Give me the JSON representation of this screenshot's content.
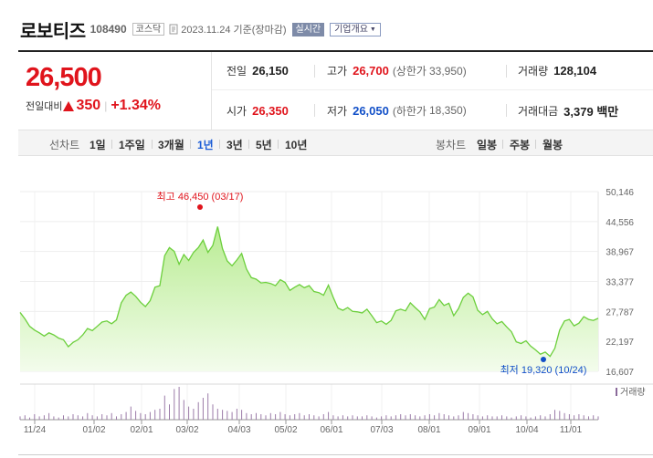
{
  "header": {
    "name": "로보티즈",
    "code": "108490",
    "market": "코스닥",
    "as_of": "2023.11.24 기준(장마감)",
    "realtime_label": "실시간",
    "overview_label": "기업개요"
  },
  "price": {
    "current": "26,500",
    "change_label": "전일대비",
    "change_value": "350",
    "change_percent": "+1.34%",
    "direction": "up"
  },
  "stats": {
    "prev_close": {
      "label": "전일",
      "value": "26,150"
    },
    "high": {
      "label": "고가",
      "value": "26,700",
      "limit_label": "(상한가",
      "limit_value": "33,950)"
    },
    "volume": {
      "label": "거래량",
      "value": "128,104"
    },
    "open": {
      "label": "시가",
      "value": "26,350"
    },
    "low": {
      "label": "저가",
      "value": "26,050",
      "limit_label": "(하한가",
      "limit_value": "18,350)"
    },
    "trade_value": {
      "label": "거래대금",
      "value": "3,379 백만"
    }
  },
  "period_bar": {
    "line_label": "선차트",
    "line_options": [
      "1일",
      "1주일",
      "3개월",
      "1년",
      "3년",
      "5년",
      "10년"
    ],
    "active_line": "1년",
    "candle_label": "봉차트",
    "candle_options": [
      "일봉",
      "주봉",
      "월봉"
    ]
  },
  "colors": {
    "up": "#e0141c",
    "down": "#1250c8",
    "line": "#6ccf3c",
    "active": "#1a5bd6"
  },
  "chart_data": {
    "type": "area",
    "y_ticks": [
      "50,146",
      "44,556",
      "38,967",
      "33,377",
      "27,787",
      "22,197",
      "16,607"
    ],
    "ylim": [
      16607,
      50146
    ],
    "x_ticks": [
      "11/24",
      "01/02",
      "02/01",
      "03/02",
      "04/03",
      "05/02",
      "06/01",
      "07/03",
      "08/01",
      "09/01",
      "10/04",
      "11/01"
    ],
    "max_annotation": "최고 46,450 (03/17)",
    "min_annotation": "최저 19,320 (10/24)",
    "volume_legend": "거래량",
    "series": [
      {
        "values": [
          27600,
          26400,
          25000,
          24300,
          23800,
          23200,
          23800,
          23400,
          22800,
          22500,
          21200,
          22000,
          22500,
          23400,
          24600,
          24200,
          25000,
          25800,
          26000,
          25500,
          26200,
          29400,
          30800,
          31400,
          30600,
          29500,
          28700,
          29800,
          32300,
          32600,
          38200,
          39700,
          39000,
          36600,
          38400,
          37300,
          38800,
          39700,
          41100,
          38800,
          40100,
          43600,
          39500,
          37200,
          36300,
          37400,
          38600,
          35700,
          34100,
          33800,
          33100,
          33200,
          33000,
          32600,
          33700,
          33200,
          31700,
          32300,
          32800,
          32200,
          32600,
          31500,
          31300,
          30800,
          32700,
          30400,
          28400,
          28000,
          28500,
          27800,
          27700,
          27500,
          28200,
          27000,
          25700,
          26000,
          25400,
          26100,
          27900,
          28200,
          27900,
          29400,
          28500,
          27700,
          26300,
          28300,
          28600,
          30000,
          28900,
          29300,
          27000,
          28300,
          30400,
          31200,
          30500,
          28000,
          27200,
          27800,
          26400,
          25500,
          25900,
          24900,
          24000,
          22100,
          21800,
          22300,
          21300,
          20600,
          19800,
          20200,
          19400,
          20900,
          24300,
          26000,
          26300,
          25100,
          25600,
          26800,
          26300,
          26100,
          26500
        ]
      }
    ],
    "volume": [
      3,
      4,
      2,
      5,
      3,
      4,
      6,
      3,
      2,
      4,
      3,
      5,
      4,
      3,
      6,
      4,
      3,
      5,
      4,
      6,
      3,
      5,
      7,
      12,
      8,
      6,
      5,
      7,
      9,
      10,
      22,
      14,
      28,
      30,
      18,
      12,
      10,
      16,
      20,
      24,
      14,
      10,
      9,
      8,
      7,
      10,
      9,
      6,
      5,
      6,
      5,
      4,
      6,
      5,
      7,
      5,
      4,
      5,
      6,
      4,
      5,
      4,
      3,
      5,
      7,
      4,
      3,
      4,
      3,
      4,
      3,
      3,
      4,
      3,
      2,
      3,
      4,
      3,
      4,
      5,
      4,
      5,
      4,
      3,
      4,
      5,
      4,
      6,
      5,
      4,
      3,
      4,
      7,
      6,
      5,
      4,
      3,
      4,
      3,
      3,
      4,
      3,
      2,
      3,
      4,
      3,
      2,
      3,
      4,
      3,
      5,
      9,
      8,
      6,
      5,
      4,
      5,
      4,
      3,
      4,
      3
    ]
  }
}
